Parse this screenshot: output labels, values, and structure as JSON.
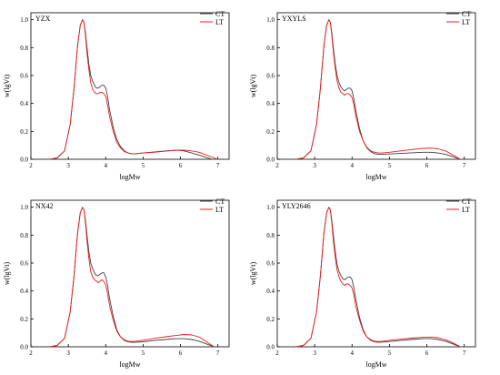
{
  "colors": {
    "CT": "#404040",
    "LT": "#ee1c1c"
  },
  "chart_data": [
    {
      "type": "line",
      "title": "YZX",
      "xlabel": "logMw",
      "ylabel": "w(lgVt)",
      "xlim": [
        2,
        7.3
      ],
      "ylim": [
        0,
        1.05
      ],
      "xticks": [
        2,
        3,
        4,
        5,
        6,
        7
      ],
      "yticks": [
        0.0,
        0.2,
        0.4,
        0.6,
        0.8,
        1.0
      ],
      "legend": "top-right",
      "series": [
        {
          "name": "CT",
          "x": [
            2.5,
            2.7,
            2.9,
            3.05,
            3.15,
            3.25,
            3.32,
            3.38,
            3.42,
            3.46,
            3.5,
            3.55,
            3.6,
            3.65,
            3.7,
            3.75,
            3.8,
            3.85,
            3.9,
            3.95,
            4.0,
            4.05,
            4.1,
            4.2,
            4.3,
            4.4,
            4.5,
            4.6,
            4.7,
            4.8,
            5.0,
            5.3,
            5.6,
            5.9,
            6.1,
            6.3,
            6.5,
            6.7,
            6.85
          ],
          "y": [
            0.0,
            0.01,
            0.06,
            0.25,
            0.5,
            0.82,
            0.96,
            1.0,
            0.98,
            0.9,
            0.8,
            0.68,
            0.6,
            0.56,
            0.53,
            0.51,
            0.51,
            0.52,
            0.53,
            0.53,
            0.51,
            0.45,
            0.36,
            0.23,
            0.14,
            0.09,
            0.06,
            0.045,
            0.04,
            0.04,
            0.045,
            0.052,
            0.06,
            0.065,
            0.06,
            0.045,
            0.03,
            0.012,
            0.0
          ]
        },
        {
          "name": "LT",
          "x": [
            2.5,
            2.7,
            2.9,
            3.05,
            3.15,
            3.25,
            3.32,
            3.38,
            3.42,
            3.46,
            3.5,
            3.55,
            3.6,
            3.65,
            3.7,
            3.75,
            3.8,
            3.85,
            3.9,
            3.95,
            4.0,
            4.05,
            4.1,
            4.2,
            4.3,
            4.4,
            4.5,
            4.6,
            4.7,
            4.8,
            5.0,
            5.3,
            5.6,
            5.9,
            6.1,
            6.3,
            6.5,
            6.7,
            6.9,
            7.0
          ],
          "y": [
            0.0,
            0.01,
            0.06,
            0.25,
            0.5,
            0.82,
            0.96,
            1.0,
            0.98,
            0.88,
            0.76,
            0.64,
            0.55,
            0.5,
            0.48,
            0.47,
            0.47,
            0.48,
            0.48,
            0.47,
            0.45,
            0.39,
            0.31,
            0.2,
            0.12,
            0.08,
            0.055,
            0.045,
            0.04,
            0.04,
            0.045,
            0.05,
            0.058,
            0.065,
            0.065,
            0.06,
            0.05,
            0.03,
            0.01,
            0.0
          ]
        }
      ]
    },
    {
      "type": "line",
      "title": "YXYLS",
      "xlabel": "logMw",
      "ylabel": "w(lgVt)",
      "xlim": [
        2,
        7.3
      ],
      "ylim": [
        0,
        1.05
      ],
      "xticks": [
        2,
        3,
        4,
        5,
        6,
        7
      ],
      "yticks": [
        0.0,
        0.2,
        0.4,
        0.6,
        0.8,
        1.0
      ],
      "legend": "top-right",
      "series": [
        {
          "name": "CT",
          "x": [
            2.5,
            2.7,
            2.9,
            3.05,
            3.15,
            3.25,
            3.32,
            3.38,
            3.42,
            3.46,
            3.5,
            3.55,
            3.6,
            3.65,
            3.7,
            3.75,
            3.8,
            3.85,
            3.9,
            3.95,
            4.0,
            4.05,
            4.1,
            4.2,
            4.3,
            4.4,
            4.5,
            4.6,
            4.7,
            4.8,
            5.0,
            5.3,
            5.6,
            5.9,
            6.1,
            6.3,
            6.5,
            6.7,
            6.9
          ],
          "y": [
            0.0,
            0.01,
            0.06,
            0.25,
            0.5,
            0.82,
            0.96,
            1.0,
            0.98,
            0.9,
            0.8,
            0.68,
            0.6,
            0.55,
            0.52,
            0.5,
            0.49,
            0.5,
            0.51,
            0.51,
            0.49,
            0.43,
            0.35,
            0.22,
            0.13,
            0.08,
            0.055,
            0.04,
            0.035,
            0.035,
            0.038,
            0.042,
            0.046,
            0.05,
            0.05,
            0.045,
            0.035,
            0.018,
            0.0
          ]
        },
        {
          "name": "LT",
          "x": [
            2.5,
            2.7,
            2.9,
            3.05,
            3.15,
            3.25,
            3.32,
            3.38,
            3.42,
            3.46,
            3.5,
            3.55,
            3.6,
            3.65,
            3.7,
            3.75,
            3.8,
            3.85,
            3.9,
            3.95,
            4.0,
            4.05,
            4.1,
            4.2,
            4.3,
            4.4,
            4.5,
            4.6,
            4.7,
            4.8,
            5.0,
            5.3,
            5.6,
            5.9,
            6.1,
            6.3,
            6.5,
            6.7,
            6.9
          ],
          "y": [
            0.0,
            0.01,
            0.06,
            0.25,
            0.5,
            0.82,
            0.96,
            1.0,
            0.98,
            0.88,
            0.77,
            0.65,
            0.56,
            0.51,
            0.48,
            0.47,
            0.46,
            0.47,
            0.47,
            0.46,
            0.44,
            0.39,
            0.31,
            0.2,
            0.13,
            0.085,
            0.06,
            0.05,
            0.045,
            0.045,
            0.05,
            0.06,
            0.07,
            0.078,
            0.08,
            0.075,
            0.06,
            0.03,
            0.0
          ]
        }
      ]
    },
    {
      "type": "line",
      "title": "NX42",
      "xlabel": "logMw",
      "ylabel": "w(lgVt)",
      "xlim": [
        2,
        7.3
      ],
      "ylim": [
        0,
        1.05
      ],
      "xticks": [
        2,
        3,
        4,
        5,
        6,
        7
      ],
      "yticks": [
        0.0,
        0.2,
        0.4,
        0.6,
        0.8,
        1.0
      ],
      "legend": "top-right",
      "series": [
        {
          "name": "CT",
          "x": [
            2.5,
            2.7,
            2.9,
            3.05,
            3.15,
            3.25,
            3.32,
            3.38,
            3.42,
            3.46,
            3.5,
            3.55,
            3.6,
            3.65,
            3.7,
            3.75,
            3.8,
            3.85,
            3.9,
            3.95,
            4.0,
            4.05,
            4.1,
            4.2,
            4.3,
            4.4,
            4.5,
            4.6,
            4.7,
            4.8,
            5.0,
            5.3,
            5.6,
            5.9,
            6.1,
            6.3,
            6.5,
            6.7,
            6.9
          ],
          "y": [
            0.0,
            0.01,
            0.06,
            0.25,
            0.5,
            0.82,
            0.96,
            1.0,
            0.98,
            0.9,
            0.8,
            0.68,
            0.6,
            0.56,
            0.53,
            0.51,
            0.51,
            0.52,
            0.53,
            0.53,
            0.5,
            0.44,
            0.35,
            0.22,
            0.12,
            0.07,
            0.045,
            0.035,
            0.032,
            0.032,
            0.036,
            0.045,
            0.052,
            0.058,
            0.058,
            0.052,
            0.04,
            0.02,
            0.0
          ]
        },
        {
          "name": "LT",
          "x": [
            2.5,
            2.7,
            2.9,
            3.05,
            3.15,
            3.25,
            3.32,
            3.38,
            3.42,
            3.46,
            3.5,
            3.55,
            3.6,
            3.65,
            3.7,
            3.75,
            3.8,
            3.85,
            3.9,
            3.95,
            4.0,
            4.05,
            4.1,
            4.2,
            4.3,
            4.4,
            4.5,
            4.6,
            4.7,
            4.8,
            5.0,
            5.3,
            5.6,
            5.9,
            6.1,
            6.3,
            6.5,
            6.7,
            6.9
          ],
          "y": [
            0.0,
            0.01,
            0.06,
            0.25,
            0.5,
            0.82,
            0.96,
            1.0,
            0.98,
            0.88,
            0.76,
            0.63,
            0.54,
            0.5,
            0.48,
            0.47,
            0.46,
            0.47,
            0.48,
            0.47,
            0.44,
            0.38,
            0.3,
            0.19,
            0.11,
            0.07,
            0.05,
            0.04,
            0.038,
            0.04,
            0.047,
            0.06,
            0.072,
            0.082,
            0.088,
            0.085,
            0.07,
            0.035,
            0.0
          ]
        }
      ]
    },
    {
      "type": "line",
      "title": "YLY2646",
      "xlabel": "logMw",
      "ylabel": "w(lgVt)",
      "xlim": [
        2,
        7.3
      ],
      "ylim": [
        0,
        1.05
      ],
      "xticks": [
        2,
        3,
        4,
        5,
        6,
        7
      ],
      "yticks": [
        0.0,
        0.2,
        0.4,
        0.6,
        0.8,
        1.0
      ],
      "legend": "top-right",
      "series": [
        {
          "name": "CT",
          "x": [
            2.5,
            2.7,
            2.9,
            3.05,
            3.15,
            3.25,
            3.32,
            3.38,
            3.42,
            3.46,
            3.5,
            3.55,
            3.6,
            3.65,
            3.7,
            3.75,
            3.8,
            3.85,
            3.9,
            3.95,
            4.0,
            4.05,
            4.1,
            4.2,
            4.3,
            4.4,
            4.5,
            4.6,
            4.7,
            4.8,
            5.0,
            5.3,
            5.6,
            5.9,
            6.1,
            6.3,
            6.5,
            6.7,
            6.9
          ],
          "y": [
            0.0,
            0.01,
            0.06,
            0.25,
            0.5,
            0.82,
            0.96,
            1.0,
            0.98,
            0.9,
            0.8,
            0.68,
            0.59,
            0.54,
            0.51,
            0.49,
            0.48,
            0.49,
            0.5,
            0.5,
            0.48,
            0.42,
            0.34,
            0.21,
            0.12,
            0.07,
            0.045,
            0.035,
            0.032,
            0.033,
            0.038,
            0.045,
            0.052,
            0.058,
            0.058,
            0.052,
            0.04,
            0.02,
            0.0
          ]
        },
        {
          "name": "LT",
          "x": [
            2.5,
            2.7,
            2.9,
            3.05,
            3.15,
            3.25,
            3.32,
            3.38,
            3.42,
            3.46,
            3.5,
            3.55,
            3.6,
            3.65,
            3.7,
            3.75,
            3.8,
            3.85,
            3.9,
            3.95,
            4.0,
            4.05,
            4.1,
            4.2,
            4.3,
            4.4,
            4.5,
            4.6,
            4.7,
            4.8,
            5.0,
            5.3,
            5.6,
            5.9,
            6.1,
            6.3,
            6.5,
            6.7,
            6.9
          ],
          "y": [
            0.0,
            0.01,
            0.06,
            0.25,
            0.5,
            0.82,
            0.96,
            1.0,
            0.98,
            0.88,
            0.76,
            0.64,
            0.55,
            0.5,
            0.47,
            0.45,
            0.44,
            0.45,
            0.45,
            0.44,
            0.42,
            0.37,
            0.29,
            0.19,
            0.11,
            0.07,
            0.05,
            0.04,
            0.038,
            0.04,
            0.046,
            0.055,
            0.062,
            0.068,
            0.07,
            0.065,
            0.05,
            0.028,
            0.0
          ]
        }
      ]
    }
  ]
}
